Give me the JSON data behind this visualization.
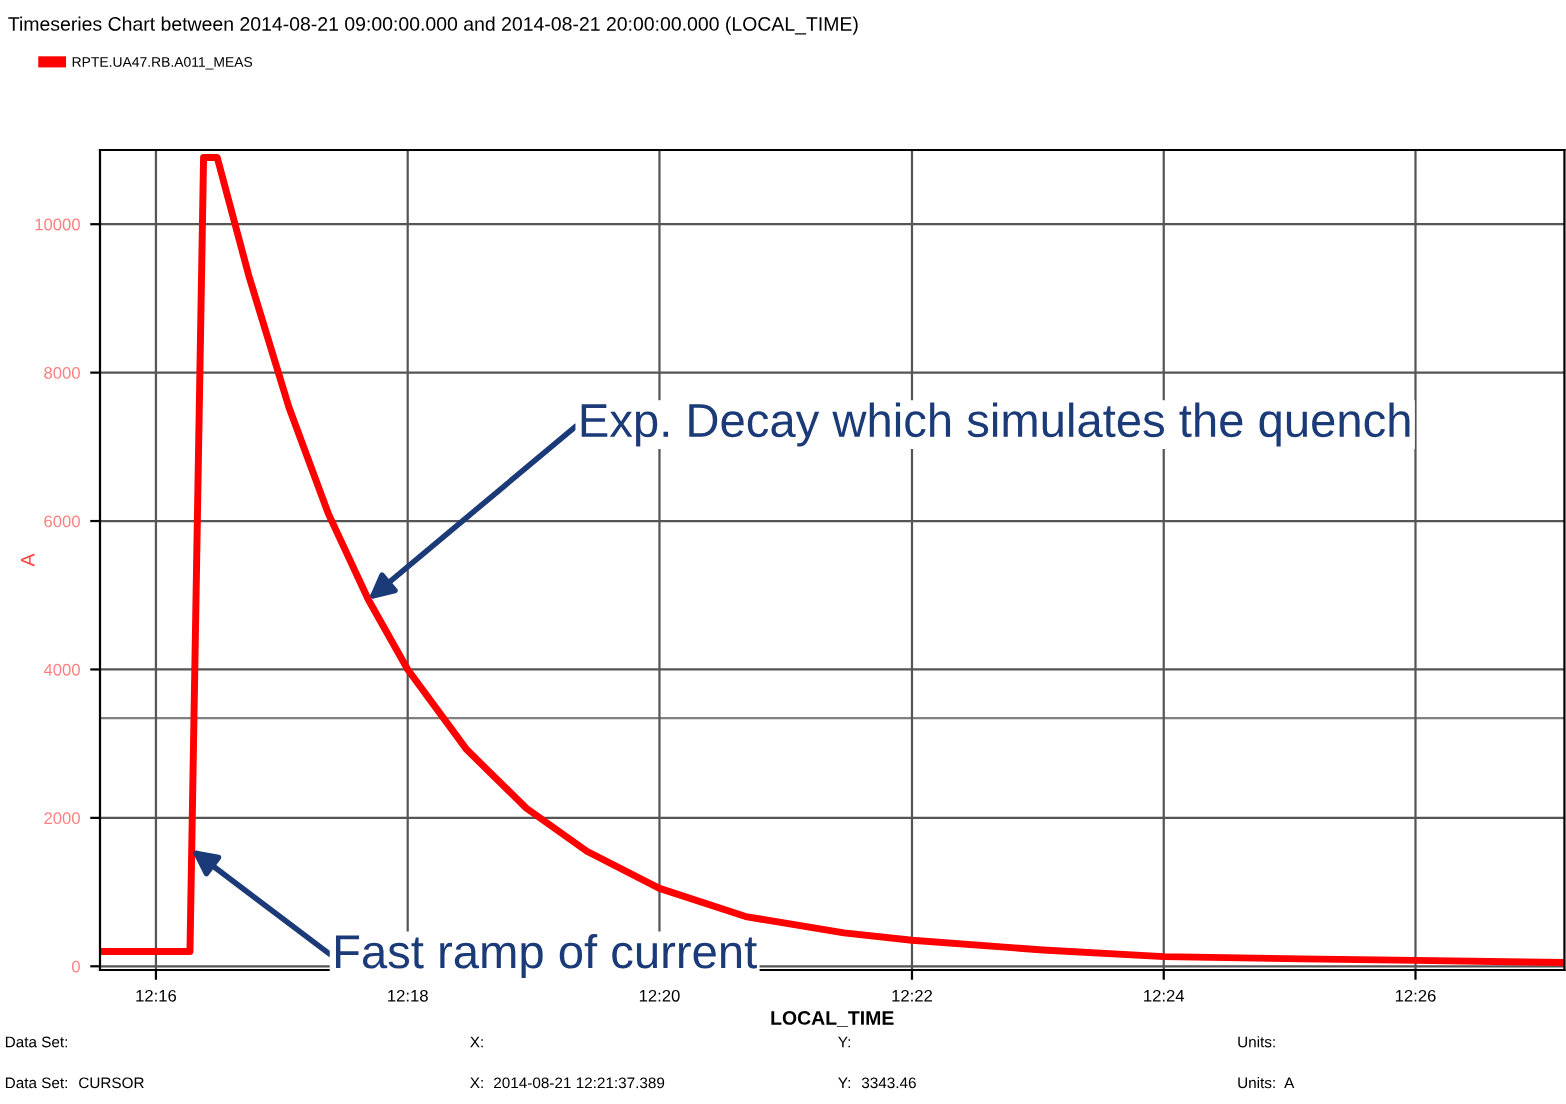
{
  "chart_data": {
    "type": "line",
    "title": "Timeseries Chart between 2014-08-21 09:00:00.000 and 2014-08-21 20:00:00.000 (LOCAL_TIME)",
    "xlabel": "LOCAL_TIME",
    "ylabel": "A",
    "x": [
      12.2593,
      12.2712,
      12.273,
      12.2748,
      12.279,
      12.2843,
      12.2895,
      12.2948,
      12.3,
      12.3078,
      12.3157,
      12.3237,
      12.3333,
      12.3447,
      12.3577,
      12.3667,
      12.384,
      12.4,
      12.4182,
      12.4333,
      12.453
    ],
    "series": [
      {
        "name": "RPTE.UA47.RB.A011_MEAS",
        "color": "#ff0000",
        "values": [
          200,
          200,
          10900,
          10900,
          9300,
          7530,
          6100,
          4940,
          4000,
          2920,
          2130,
          1550,
          1050,
          670,
          450,
          350,
          220,
          130,
          100,
          80,
          50
        ]
      }
    ],
    "xlim": [
      12.2593,
      12.453
    ],
    "ylim": [
      -50,
      11000
    ],
    "xticks": [
      {
        "value": 12.2667,
        "label": "12:16"
      },
      {
        "value": 12.3,
        "label": "12:18"
      },
      {
        "value": 12.3333,
        "label": "12:20"
      },
      {
        "value": 12.3667,
        "label": "12:22"
      },
      {
        "value": 12.4,
        "label": "12:24"
      },
      {
        "value": 12.4333,
        "label": "12:26"
      }
    ],
    "yticks": [
      0,
      2000,
      4000,
      6000,
      8000,
      10000
    ],
    "grid": true,
    "legend": "top left",
    "marker": "none",
    "line_style": "solid",
    "ref_lines": [
      {
        "axis": "y",
        "value": 3343.46,
        "color": "#808080"
      }
    ],
    "annotations": [
      {
        "text": "Exp. Decay which simulates the quench",
        "x": 12.2948,
        "y": 4940
      },
      {
        "text": "Fast ramp of current",
        "x": 12.2714,
        "y": 1570
      },
      "Data Set:",
      "X:",
      "Y:",
      "Units:",
      "Data Set:",
      "CURSOR",
      "X:",
      "2014-08-21 12:21:37.389",
      "Y:",
      "3343.46",
      "Units:",
      "A"
    ]
  }
}
